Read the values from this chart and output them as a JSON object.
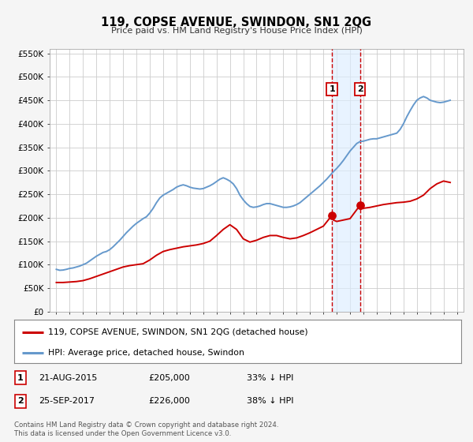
{
  "title": "119, COPSE AVENUE, SWINDON, SN1 2QG",
  "subtitle": "Price paid vs. HM Land Registry's House Price Index (HPI)",
  "legend_label_red": "119, COPSE AVENUE, SWINDON, SN1 2QG (detached house)",
  "legend_label_blue": "HPI: Average price, detached house, Swindon",
  "sale1_date": "21-AUG-2015",
  "sale1_price": 205000,
  "sale1_pct": "33% ↓ HPI",
  "sale2_date": "25-SEP-2017",
  "sale2_price": 226000,
  "sale2_pct": "38% ↓ HPI",
  "footnote": "Contains HM Land Registry data © Crown copyright and database right 2024.\nThis data is licensed under the Open Government Licence v3.0.",
  "sale1_x": 2015.644,
  "sale2_x": 2017.736,
  "red_color": "#cc0000",
  "blue_color": "#6699cc",
  "marker_color": "#cc0000",
  "shade_color": "#ddeeff",
  "vline_color": "#cc0000",
  "ylim_max": 560000,
  "ylim_min": 0,
  "xlim_min": 1994.5,
  "xlim_max": 2025.5,
  "background_color": "#f5f5f5",
  "plot_bg_color": "#ffffff",
  "grid_color": "#cccccc",
  "hpi_data_years": [
    1995,
    1995.25,
    1995.5,
    1995.75,
    1996,
    1996.25,
    1996.5,
    1996.75,
    1997,
    1997.25,
    1997.5,
    1997.75,
    1998,
    1998.25,
    1998.5,
    1998.75,
    1999,
    1999.25,
    1999.5,
    1999.75,
    2000,
    2000.25,
    2000.5,
    2000.75,
    2001,
    2001.25,
    2001.5,
    2001.75,
    2002,
    2002.25,
    2002.5,
    2002.75,
    2003,
    2003.25,
    2003.5,
    2003.75,
    2004,
    2004.25,
    2004.5,
    2004.75,
    2005,
    2005.25,
    2005.5,
    2005.75,
    2006,
    2006.25,
    2006.5,
    2006.75,
    2007,
    2007.25,
    2007.5,
    2007.75,
    2008,
    2008.25,
    2008.5,
    2008.75,
    2009,
    2009.25,
    2009.5,
    2009.75,
    2010,
    2010.25,
    2010.5,
    2010.75,
    2011,
    2011.25,
    2011.5,
    2011.75,
    2012,
    2012.25,
    2012.5,
    2012.75,
    2013,
    2013.25,
    2013.5,
    2013.75,
    2014,
    2014.25,
    2014.5,
    2014.75,
    2015,
    2015.25,
    2015.5,
    2015.75,
    2016,
    2016.25,
    2016.5,
    2016.75,
    2017,
    2017.25,
    2017.5,
    2017.75,
    2018,
    2018.25,
    2018.5,
    2018.75,
    2019,
    2019.25,
    2019.5,
    2019.75,
    2020,
    2020.25,
    2020.5,
    2020.75,
    2021,
    2021.25,
    2021.5,
    2021.75,
    2022,
    2022.25,
    2022.5,
    2022.75,
    2023,
    2023.25,
    2023.5,
    2023.75,
    2024,
    2024.25,
    2024.5
  ],
  "hpi_data_values": [
    90000,
    88000,
    88500,
    90000,
    92000,
    93000,
    95000,
    97000,
    100000,
    103000,
    108000,
    113000,
    118000,
    122000,
    126000,
    128000,
    132000,
    138000,
    145000,
    152000,
    160000,
    168000,
    175000,
    182000,
    188000,
    193000,
    198000,
    202000,
    210000,
    220000,
    232000,
    242000,
    248000,
    252000,
    256000,
    260000,
    265000,
    268000,
    270000,
    268000,
    265000,
    263000,
    262000,
    261000,
    262000,
    265000,
    268000,
    272000,
    277000,
    282000,
    285000,
    282000,
    278000,
    272000,
    262000,
    248000,
    238000,
    230000,
    224000,
    222000,
    223000,
    225000,
    228000,
    230000,
    230000,
    228000,
    226000,
    224000,
    222000,
    222000,
    223000,
    225000,
    228000,
    232000,
    238000,
    244000,
    250000,
    256000,
    262000,
    268000,
    275000,
    282000,
    290000,
    298000,
    305000,
    313000,
    322000,
    332000,
    342000,
    350000,
    358000,
    362000,
    363000,
    365000,
    367000,
    368000,
    368000,
    370000,
    372000,
    374000,
    376000,
    378000,
    380000,
    388000,
    400000,
    415000,
    428000,
    440000,
    450000,
    455000,
    458000,
    455000,
    450000,
    448000,
    446000,
    445000,
    446000,
    448000,
    450000
  ],
  "red_data_years": [
    1995,
    1995.5,
    1996,
    1996.5,
    1997,
    1997.5,
    1998,
    1998.5,
    1999,
    1999.5,
    2000,
    2000.5,
    2001,
    2001.5,
    2002,
    2002.5,
    2003,
    2003.5,
    2004,
    2004.5,
    2005,
    2005.5,
    2006,
    2006.5,
    2007,
    2007.5,
    2008,
    2008.5,
    2009,
    2009.5,
    2010,
    2010.5,
    2011,
    2011.5,
    2012,
    2012.5,
    2013,
    2013.5,
    2014,
    2014.5,
    2015,
    2015.644,
    2015.75,
    2016,
    2016.5,
    2017,
    2017.736,
    2017.75,
    2018,
    2018.5,
    2019,
    2019.5,
    2020,
    2020.5,
    2021,
    2021.5,
    2022,
    2022.5,
    2023,
    2023.5,
    2024,
    2024.5
  ],
  "red_data_values": [
    62000,
    62000,
    63000,
    64000,
    66000,
    70000,
    75000,
    80000,
    85000,
    90000,
    95000,
    98000,
    100000,
    102000,
    110000,
    120000,
    128000,
    132000,
    135000,
    138000,
    140000,
    142000,
    145000,
    150000,
    162000,
    175000,
    185000,
    175000,
    155000,
    148000,
    152000,
    158000,
    162000,
    162000,
    158000,
    155000,
    157000,
    162000,
    168000,
    175000,
    182000,
    205000,
    195000,
    192000,
    195000,
    198000,
    226000,
    218000,
    220000,
    222000,
    225000,
    228000,
    230000,
    232000,
    233000,
    235000,
    240000,
    248000,
    262000,
    272000,
    278000,
    275000
  ]
}
